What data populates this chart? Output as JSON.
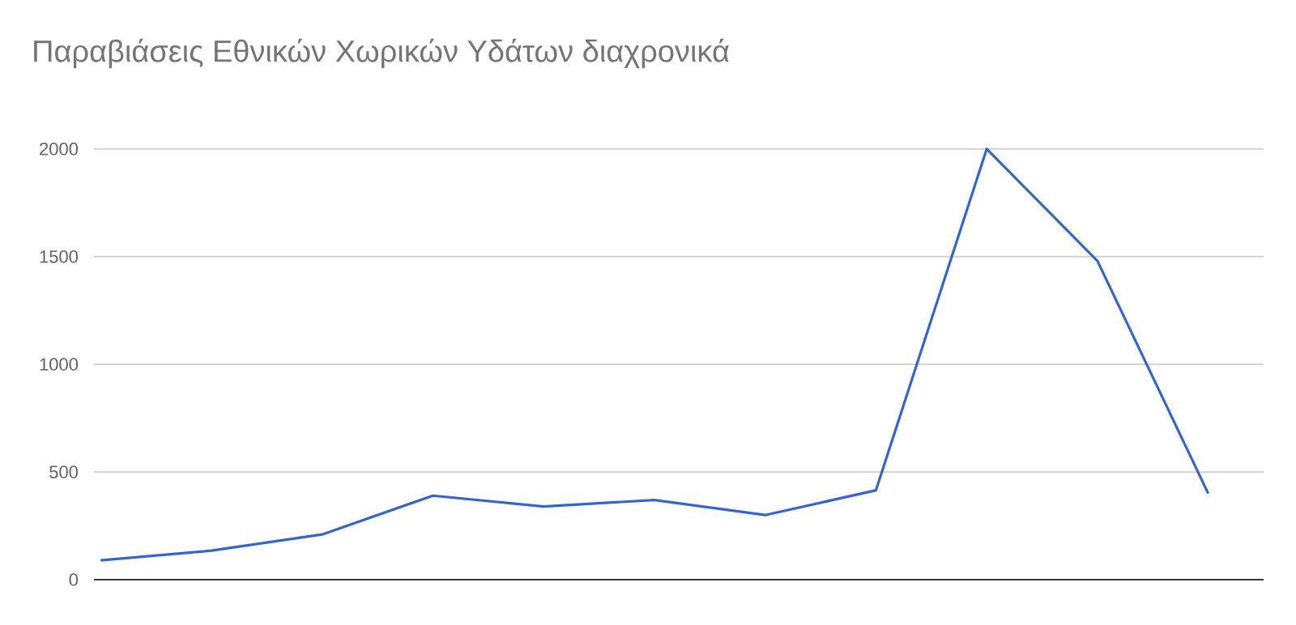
{
  "chart_data": {
    "type": "line",
    "title": "Παραβιάσεις Εθνικών Χωρικών Υδάτων διαχρονικά",
    "categories": [
      null,
      null,
      null,
      null,
      null,
      null,
      null,
      null,
      null,
      null,
      null
    ],
    "series": [
      {
        "color": "#3366cc",
        "values": [
          90,
          135,
          210,
          390,
          340,
          370,
          300,
          415,
          2000,
          1480,
          400
        ]
      }
    ],
    "ylim": [
      0,
      2000
    ],
    "yticks": [
      0,
      500,
      1000,
      1500,
      2000
    ],
    "grid": "y",
    "tick_labels": "y",
    "marker": "none",
    "line_style": "solid"
  }
}
